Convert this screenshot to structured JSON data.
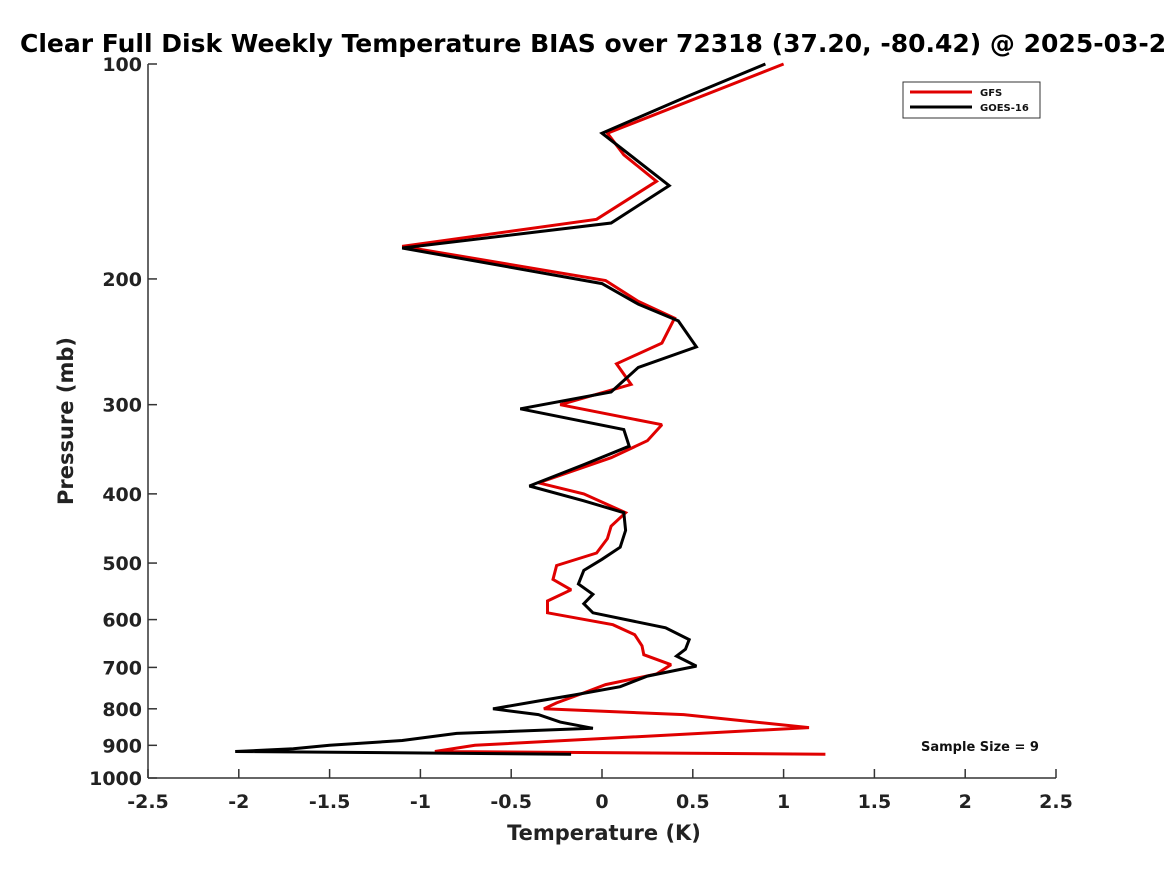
{
  "chart_data": {
    "type": "line",
    "title": "Clear Full Disk Weekly Temperature BIAS over 72318 (37.20, -80.42) @ 2025-03-2",
    "xlabel": "Temperature (K)",
    "ylabel": "Pressure (mb)",
    "xlim": [
      -2.5,
      2.5
    ],
    "ylim": [
      100,
      1000
    ],
    "y_scale": "log",
    "y_reversed": true,
    "grid": false,
    "legend_position": "top-right",
    "x_ticks": [
      -2.5,
      -2,
      -1.5,
      -1,
      -0.5,
      0,
      0.5,
      1,
      1.5,
      2,
      2.5
    ],
    "x_tick_labels": [
      "-2.5",
      "-2",
      "-1.5",
      "-1",
      "-0.5",
      "0",
      "0.5",
      "1",
      "1.5",
      "2",
      "2.5"
    ],
    "y_ticks": [
      100,
      200,
      300,
      400,
      500,
      600,
      700,
      800,
      900,
      1000
    ],
    "y_tick_labels": [
      "100",
      "200",
      "300",
      "400",
      "500",
      "600",
      "700",
      "800",
      "900",
      "1000"
    ],
    "annotation": "Sample Size = 9",
    "series": [
      {
        "name": "GFS",
        "color": "#e00000",
        "points": [
          [
            1.0,
            100
          ],
          [
            0.03,
            125
          ],
          [
            0.12,
            134
          ],
          [
            0.3,
            146
          ],
          [
            -0.03,
            165
          ],
          [
            -1.1,
            180
          ],
          [
            0.02,
            201
          ],
          [
            0.2,
            215
          ],
          [
            0.4,
            227
          ],
          [
            0.33,
            246
          ],
          [
            0.08,
            263
          ],
          [
            0.16,
            281
          ],
          [
            -0.23,
            300
          ],
          [
            0.33,
            320
          ],
          [
            0.25,
            337
          ],
          [
            0.05,
            356
          ],
          [
            -0.35,
            386
          ],
          [
            -0.1,
            400
          ],
          [
            0.13,
            425
          ],
          [
            0.05,
            444
          ],
          [
            0.03,
            462
          ],
          [
            -0.03,
            484
          ],
          [
            -0.25,
            504
          ],
          [
            -0.27,
            527
          ],
          [
            -0.17,
            545
          ],
          [
            -0.3,
            565
          ],
          [
            -0.3,
            587
          ],
          [
            0.06,
            610
          ],
          [
            0.18,
            630
          ],
          [
            0.22,
            653
          ],
          [
            0.23,
            672
          ],
          [
            0.38,
            694
          ],
          [
            0.3,
            715
          ],
          [
            0.02,
            740
          ],
          [
            -0.1,
            760
          ],
          [
            -0.25,
            785
          ],
          [
            -0.32,
            800
          ],
          [
            0.45,
            815
          ],
          [
            1.14,
            850
          ],
          [
            -0.7,
            900
          ],
          [
            -0.92,
            918
          ],
          [
            1.23,
            926
          ]
        ]
      },
      {
        "name": "GOES-16",
        "color": "#000000",
        "points": [
          [
            0.9,
            100
          ],
          [
            0.47,
            111
          ],
          [
            0.0,
            125
          ],
          [
            0.37,
            148
          ],
          [
            0.05,
            167
          ],
          [
            -1.1,
            181
          ],
          [
            0.0,
            203
          ],
          [
            0.2,
            217
          ],
          [
            0.42,
            229
          ],
          [
            0.52,
            249
          ],
          [
            0.2,
            266
          ],
          [
            0.05,
            288
          ],
          [
            -0.45,
            304
          ],
          [
            0.12,
            325
          ],
          [
            0.15,
            343
          ],
          [
            -0.1,
            364
          ],
          [
            -0.4,
            390
          ],
          [
            -0.1,
            409
          ],
          [
            0.12,
            425
          ],
          [
            0.13,
            450
          ],
          [
            0.1,
            475
          ],
          [
            0.0,
            494
          ],
          [
            -0.1,
            512
          ],
          [
            -0.13,
            535
          ],
          [
            -0.05,
            553
          ],
          [
            -0.1,
            570
          ],
          [
            -0.05,
            587
          ],
          [
            0.35,
            616
          ],
          [
            0.48,
            640
          ],
          [
            0.46,
            660
          ],
          [
            0.41,
            675
          ],
          [
            0.52,
            697
          ],
          [
            0.25,
            720
          ],
          [
            0.1,
            745
          ],
          [
            -0.15,
            765
          ],
          [
            -0.35,
            780
          ],
          [
            -0.6,
            800
          ],
          [
            -0.35,
            815
          ],
          [
            -0.23,
            835
          ],
          [
            -0.05,
            852
          ],
          [
            -0.8,
            866
          ],
          [
            -1.1,
            886
          ],
          [
            -1.5,
            900
          ],
          [
            -1.7,
            910
          ],
          [
            -2.02,
            918
          ],
          [
            -0.17,
            926
          ]
        ]
      }
    ]
  }
}
